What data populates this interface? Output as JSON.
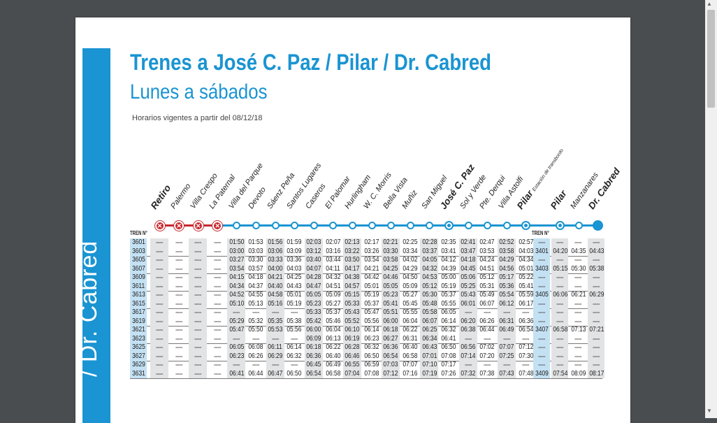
{
  "document": {
    "sidebar_text": "/ Dr. Cabred",
    "title": "Trenes a José C. Paz / Pilar / Dr. Cabred",
    "subtitle": "Lunes a sábados",
    "validity": "Horarios vigentes a partir del 08/12/18",
    "tren_header": "TREN N°",
    "tren_header_right": "TREN N°"
  },
  "stations": [
    {
      "name": "Retiro",
      "bold": true,
      "marker": "closed"
    },
    {
      "name": "Palermo",
      "bold": false,
      "marker": "closed"
    },
    {
      "name": "Villa Crespo",
      "bold": false,
      "marker": "closed"
    },
    {
      "name": "La Paternal",
      "bold": false,
      "marker": "closed"
    },
    {
      "name": "Villa del Parque",
      "bold": false,
      "marker": "stop"
    },
    {
      "name": "Devoto",
      "bold": false,
      "marker": "stop"
    },
    {
      "name": "Sáenz Peña",
      "bold": false,
      "marker": "stop"
    },
    {
      "name": "Santos Lugares",
      "bold": false,
      "marker": "stop"
    },
    {
      "name": "Caseros",
      "bold": false,
      "marker": "stop"
    },
    {
      "name": "El Palomar",
      "bold": false,
      "marker": "stop"
    },
    {
      "name": "Hurlingham",
      "bold": false,
      "marker": "stop"
    },
    {
      "name": "W. C. Morris",
      "bold": false,
      "marker": "stop"
    },
    {
      "name": "Bella Vista",
      "bold": false,
      "marker": "stop"
    },
    {
      "name": "Muñiz",
      "bold": false,
      "marker": "stop"
    },
    {
      "name": "San Miguel",
      "bold": false,
      "marker": "stop"
    },
    {
      "name": "José C. Paz",
      "bold": true,
      "marker": "terminal"
    },
    {
      "name": "Sol y Verde",
      "bold": false,
      "marker": "stop"
    },
    {
      "name": "Pte. Derqui",
      "bold": false,
      "marker": "stop"
    },
    {
      "name": "Villa Astolfi",
      "bold": false,
      "marker": "stop"
    },
    {
      "name": "Pilar",
      "bold": true,
      "marker": "terminal",
      "sub": "Estación de transbordo"
    },
    {
      "name": "Pilar",
      "bold": true,
      "marker": "terminal"
    },
    {
      "name": "Manzanares",
      "bold": false,
      "marker": "stop"
    },
    {
      "name": "Dr. Cabred",
      "bold": true,
      "marker": "end"
    }
  ],
  "trains": [
    {
      "n": "3601",
      "t": [
        "====",
        "====",
        "====",
        "====",
        "01:50",
        "01:53",
        "01:56",
        "01:59",
        "02:03",
        "02:07",
        "02:13",
        "02:17",
        "02:21",
        "02:25",
        "02:28",
        "02:35",
        "02:41",
        "02:47",
        "02:52",
        "02:57"
      ],
      "r": [
        "====",
        "====",
        "====",
        "===="
      ]
    },
    {
      "n": "3603",
      "t": [
        "====",
        "====",
        "====",
        "====",
        "03:00",
        "03:03",
        "03:06",
        "03:09",
        "03:12",
        "03:16",
        "03:22",
        "03:26",
        "03:30",
        "03:34",
        "03:37",
        "03:41",
        "03:47",
        "03:53",
        "03:58",
        "04:03"
      ],
      "r": [
        "3401",
        "04:20",
        "04:35",
        "04:43"
      ]
    },
    {
      "n": "3605",
      "t": [
        "====",
        "====",
        "====",
        "====",
        "03:27",
        "03:30",
        "03:33",
        "03:36",
        "03:40",
        "03:44",
        "03:50",
        "03:54",
        "03:58",
        "04:02",
        "04:05",
        "04:12",
        "04:18",
        "04:24",
        "04:29",
        "04:34"
      ],
      "r": [
        "====",
        "====",
        "====",
        "===="
      ]
    },
    {
      "n": "3607",
      "t": [
        "====",
        "====",
        "====",
        "====",
        "03:54",
        "03:57",
        "04:00",
        "04:03",
        "04:07",
        "04:11",
        "04:17",
        "04:21",
        "04:25",
        "04:29",
        "04:32",
        "04:39",
        "04:45",
        "04:51",
        "04:56",
        "05:01"
      ],
      "r": [
        "3403",
        "05:15",
        "05:30",
        "05:38"
      ]
    },
    {
      "n": "3609",
      "t": [
        "====",
        "====",
        "====",
        "====",
        "04:15",
        "04:18",
        "04:21",
        "04:25",
        "04:28",
        "04:32",
        "04:38",
        "04:42",
        "04:46",
        "04:50",
        "04:53",
        "05:00",
        "05:06",
        "05:12",
        "05:17",
        "05:22"
      ],
      "r": [
        "====",
        "====",
        "====",
        "===="
      ]
    },
    {
      "n": "3611",
      "t": [
        "====",
        "====",
        "====",
        "====",
        "04:34",
        "04:37",
        "04:40",
        "04:43",
        "04:47",
        "04:51",
        "04:57",
        "05:01",
        "05:05",
        "05:09",
        "05:12",
        "05:19",
        "05:25",
        "05:31",
        "05:36",
        "05:41"
      ],
      "r": [
        "====",
        "====",
        "====",
        "===="
      ]
    },
    {
      "n": "3613",
      "t": [
        "====",
        "====",
        "====",
        "====",
        "04:52",
        "04:55",
        "04:58",
        "05:01",
        "05:05",
        "05:09",
        "05:15",
        "05:19",
        "05:23",
        "05:27",
        "05:30",
        "05:37",
        "05:43",
        "05:49",
        "05:54",
        "05:59"
      ],
      "r": [
        "3405",
        "06:06",
        "06:21",
        "06:29"
      ]
    },
    {
      "n": "3615",
      "t": [
        "====",
        "====",
        "====",
        "====",
        "05:10",
        "05:13",
        "05:16",
        "05:19",
        "05:23",
        "05:27",
        "05:33",
        "05:37",
        "05:41",
        "05:45",
        "05:48",
        "05:55",
        "06:01",
        "06:07",
        "06:12",
        "06:17"
      ],
      "r": [
        "====",
        "====",
        "====",
        "===="
      ]
    },
    {
      "n": "3617",
      "t": [
        "====",
        "====",
        "====",
        "====",
        "====",
        "====",
        "====",
        "====",
        "05:33",
        "05:37",
        "05:43",
        "05:47",
        "05:51",
        "05:55",
        "05:58",
        "06:05",
        "====",
        "====",
        "====",
        "===="
      ],
      "r": [
        "====",
        "====",
        "====",
        "===="
      ]
    },
    {
      "n": "3619",
      "t": [
        "====",
        "====",
        "====",
        "====",
        "05:29",
        "05:32",
        "05:35",
        "05:38",
        "05:42",
        "05:46",
        "05:52",
        "05:56",
        "06:00",
        "06:04",
        "06:07",
        "06:14",
        "06:20",
        "06:26",
        "06:31",
        "06:36"
      ],
      "r": [
        "====",
        "====",
        "====",
        "===="
      ]
    },
    {
      "n": "3621",
      "t": [
        "====",
        "====",
        "====",
        "====",
        "05:47",
        "05:50",
        "05:53",
        "05:56",
        "06:00",
        "06:04",
        "06:10",
        "06:14",
        "06:18",
        "06:22",
        "06:25",
        "06:32",
        "06:38",
        "06:44",
        "06:49",
        "06:54"
      ],
      "r": [
        "3407",
        "06:58",
        "07:13",
        "07:21"
      ]
    },
    {
      "n": "3623",
      "t": [
        "====",
        "====",
        "====",
        "====",
        "====",
        "====",
        "====",
        "====",
        "06:09",
        "06:13",
        "06:19",
        "06:23",
        "06:27",
        "06:31",
        "06:34",
        "06:41",
        "====",
        "====",
        "====",
        "===="
      ],
      "r": [
        "====",
        "====",
        "====",
        "===="
      ]
    },
    {
      "n": "3625",
      "t": [
        "====",
        "====",
        "====",
        "====",
        "06:05",
        "06:08",
        "06:11",
        "06:14",
        "06:18",
        "06:22",
        "06:28",
        "06:32",
        "06:36",
        "06:40",
        "06:43",
        "06:50",
        "06:56",
        "07:02",
        "07:07",
        "07:12"
      ],
      "r": [
        "====",
        "====",
        "====",
        "===="
      ]
    },
    {
      "n": "3627",
      "t": [
        "====",
        "====",
        "====",
        "====",
        "06:23",
        "06:26",
        "06:29",
        "06:32",
        "06:36",
        "06:40",
        "06:46",
        "06:50",
        "06:54",
        "06:58",
        "07:01",
        "07:08",
        "07:14",
        "07:20",
        "07:25",
        "07:30"
      ],
      "r": [
        "====",
        "====",
        "====",
        "===="
      ]
    },
    {
      "n": "3629",
      "t": [
        "====",
        "====",
        "====",
        "====",
        "====",
        "====",
        "====",
        "====",
        "06:45",
        "06:49",
        "06:55",
        "06:59",
        "07:03",
        "07:07",
        "07:10",
        "07:17",
        "====",
        "====",
        "====",
        "===="
      ],
      "r": [
        "====",
        "====",
        "====",
        "===="
      ]
    },
    {
      "n": "3631",
      "t": [
        "====",
        "====",
        "====",
        "====",
        "06:41",
        "06:44",
        "06:47",
        "06:50",
        "06:54",
        "06:58",
        "07:04",
        "07:08",
        "07:12",
        "07:16",
        "07:19",
        "07:26",
        "07:32",
        "07:38",
        "07:43",
        "07:48"
      ],
      "r": [
        "3409",
        "07:54",
        "08:09",
        "08:17"
      ]
    }
  ],
  "colors": {
    "accent": "#1a94d2",
    "closed": "#c8282e",
    "shade": "#e2e3e4",
    "shade_blue": "#c4e1f3"
  }
}
